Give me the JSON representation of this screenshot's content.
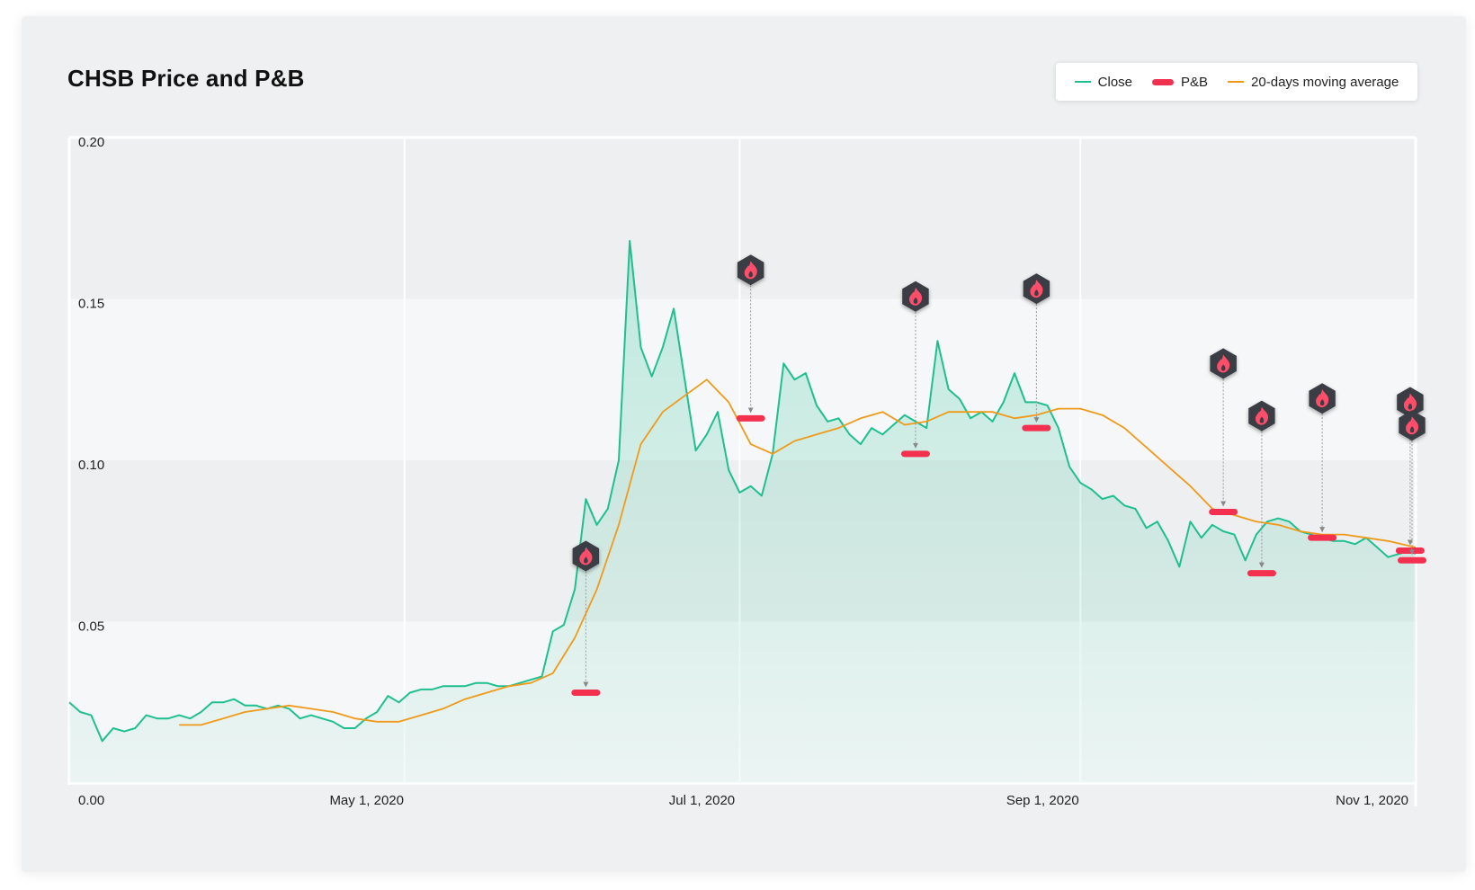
{
  "colors": {
    "close": "#1fbf8f",
    "pb": "#f4304f",
    "ma": "#f09a1c",
    "marker_bg": "#3a3d45"
  },
  "chart_data": {
    "type": "line",
    "title": "CHSB Price and P&B",
    "xlabel": "",
    "ylabel": "",
    "xlim": [
      "2020-03-01",
      "2020-11-01"
    ],
    "ylim": [
      0,
      0.2
    ],
    "y_ticks": [
      "0.20",
      "0.15",
      "0.10",
      "0.05",
      "0.00"
    ],
    "x_ticks": [
      "May 1, 2020",
      "Jul 1, 2020",
      "Sep 1, 2020",
      "Nov 1, 2020"
    ],
    "legend_position": "top-right",
    "grid": true,
    "series": [
      {
        "name": "Close",
        "kind": "line-area",
        "x": [
          "2020-03-01",
          "2020-03-03",
          "2020-03-05",
          "2020-03-07",
          "2020-03-09",
          "2020-03-11",
          "2020-03-13",
          "2020-03-15",
          "2020-03-17",
          "2020-03-19",
          "2020-03-21",
          "2020-03-23",
          "2020-03-25",
          "2020-03-27",
          "2020-03-29",
          "2020-03-31",
          "2020-04-02",
          "2020-04-04",
          "2020-04-06",
          "2020-04-08",
          "2020-04-10",
          "2020-04-12",
          "2020-04-14",
          "2020-04-16",
          "2020-04-18",
          "2020-04-20",
          "2020-04-22",
          "2020-04-24",
          "2020-04-26",
          "2020-04-28",
          "2020-04-30",
          "2020-05-02",
          "2020-05-04",
          "2020-05-06",
          "2020-05-08",
          "2020-05-10",
          "2020-05-12",
          "2020-05-14",
          "2020-05-16",
          "2020-05-18",
          "2020-05-20",
          "2020-05-22",
          "2020-05-24",
          "2020-05-26",
          "2020-05-28",
          "2020-05-30",
          "2020-06-01",
          "2020-06-03",
          "2020-06-05",
          "2020-06-07",
          "2020-06-09",
          "2020-06-11",
          "2020-06-13",
          "2020-06-15",
          "2020-06-17",
          "2020-06-19",
          "2020-06-21",
          "2020-06-23",
          "2020-06-25",
          "2020-06-27",
          "2020-06-29",
          "2020-07-01",
          "2020-07-03",
          "2020-07-05",
          "2020-07-07",
          "2020-07-09",
          "2020-07-11",
          "2020-07-13",
          "2020-07-15",
          "2020-07-17",
          "2020-07-19",
          "2020-07-21",
          "2020-07-23",
          "2020-07-25",
          "2020-07-27",
          "2020-07-29",
          "2020-07-31",
          "2020-08-02",
          "2020-08-04",
          "2020-08-06",
          "2020-08-08",
          "2020-08-10",
          "2020-08-12",
          "2020-08-14",
          "2020-08-16",
          "2020-08-18",
          "2020-08-20",
          "2020-08-22",
          "2020-08-24",
          "2020-08-26",
          "2020-08-28",
          "2020-08-30",
          "2020-09-01",
          "2020-09-03",
          "2020-09-05",
          "2020-09-07",
          "2020-09-09",
          "2020-09-11",
          "2020-09-13",
          "2020-09-15",
          "2020-09-17",
          "2020-09-19",
          "2020-09-21",
          "2020-09-23",
          "2020-09-25",
          "2020-09-27",
          "2020-09-29",
          "2020-10-01",
          "2020-10-03",
          "2020-10-05",
          "2020-10-07",
          "2020-10-09",
          "2020-10-11",
          "2020-10-13",
          "2020-10-15",
          "2020-10-17",
          "2020-10-19",
          "2020-10-21",
          "2020-10-23",
          "2020-10-25",
          "2020-10-27",
          "2020-10-29",
          "2020-10-31",
          "2020-11-01"
        ],
        "values": [
          0.025,
          0.022,
          0.021,
          0.013,
          0.017,
          0.016,
          0.017,
          0.021,
          0.02,
          0.02,
          0.021,
          0.02,
          0.022,
          0.025,
          0.025,
          0.026,
          0.024,
          0.024,
          0.023,
          0.024,
          0.023,
          0.02,
          0.021,
          0.02,
          0.019,
          0.017,
          0.017,
          0.02,
          0.022,
          0.027,
          0.025,
          0.028,
          0.029,
          0.029,
          0.03,
          0.03,
          0.03,
          0.031,
          0.031,
          0.03,
          0.03,
          0.031,
          0.032,
          0.033,
          0.047,
          0.049,
          0.06,
          0.088,
          0.08,
          0.085,
          0.1,
          0.168,
          0.135,
          0.126,
          0.135,
          0.147,
          0.125,
          0.103,
          0.108,
          0.115,
          0.097,
          0.09,
          0.092,
          0.089,
          0.102,
          0.13,
          0.125,
          0.127,
          0.117,
          0.112,
          0.113,
          0.108,
          0.105,
          0.11,
          0.108,
          0.111,
          0.114,
          0.112,
          0.11,
          0.137,
          0.122,
          0.119,
          0.113,
          0.115,
          0.112,
          0.118,
          0.127,
          0.118,
          0.118,
          0.117,
          0.11,
          0.098,
          0.093,
          0.091,
          0.088,
          0.089,
          0.086,
          0.085,
          0.079,
          0.081,
          0.075,
          0.067,
          0.081,
          0.076,
          0.08,
          0.078,
          0.077,
          0.069,
          0.077,
          0.081,
          0.082,
          0.081,
          0.078,
          0.077,
          0.076,
          0.075,
          0.075,
          0.074,
          0.076,
          0.073,
          0.07,
          0.071,
          0.072,
          0.071
        ]
      },
      {
        "name": "20-days moving average",
        "kind": "line",
        "x": [
          "2020-03-21",
          "2020-03-25",
          "2020-03-29",
          "2020-04-02",
          "2020-04-06",
          "2020-04-10",
          "2020-04-14",
          "2020-04-18",
          "2020-04-22",
          "2020-04-26",
          "2020-04-30",
          "2020-05-04",
          "2020-05-08",
          "2020-05-12",
          "2020-05-16",
          "2020-05-20",
          "2020-05-24",
          "2020-05-28",
          "2020-06-01",
          "2020-06-05",
          "2020-06-09",
          "2020-06-13",
          "2020-06-17",
          "2020-06-21",
          "2020-06-25",
          "2020-06-29",
          "2020-07-03",
          "2020-07-07",
          "2020-07-11",
          "2020-07-15",
          "2020-07-19",
          "2020-07-23",
          "2020-07-27",
          "2020-07-31",
          "2020-08-04",
          "2020-08-08",
          "2020-08-12",
          "2020-08-16",
          "2020-08-20",
          "2020-08-24",
          "2020-08-28",
          "2020-09-01",
          "2020-09-05",
          "2020-09-09",
          "2020-09-13",
          "2020-09-17",
          "2020-09-21",
          "2020-09-25",
          "2020-09-29",
          "2020-10-03",
          "2020-10-07",
          "2020-10-11",
          "2020-10-15",
          "2020-10-19",
          "2020-10-23",
          "2020-10-27",
          "2020-11-01"
        ],
        "values": [
          0.018,
          0.018,
          0.02,
          0.022,
          0.023,
          0.024,
          0.023,
          0.022,
          0.02,
          0.019,
          0.019,
          0.021,
          0.023,
          0.026,
          0.028,
          0.03,
          0.031,
          0.034,
          0.045,
          0.06,
          0.08,
          0.105,
          0.115,
          0.12,
          0.125,
          0.118,
          0.105,
          0.102,
          0.106,
          0.108,
          0.11,
          0.113,
          0.115,
          0.111,
          0.112,
          0.115,
          0.115,
          0.115,
          0.113,
          0.114,
          0.116,
          0.116,
          0.114,
          0.11,
          0.104,
          0.098,
          0.092,
          0.085,
          0.083,
          0.081,
          0.08,
          0.078,
          0.077,
          0.077,
          0.076,
          0.075,
          0.073
        ]
      },
      {
        "name": "P&B",
        "kind": "event-marker",
        "x": [
          "2020-06-03",
          "2020-07-03",
          "2020-08-02",
          "2020-08-24",
          "2020-09-27",
          "2020-10-04",
          "2020-10-15",
          "2020-10-31",
          "2020-11-01"
        ],
        "values": [
          0.028,
          0.113,
          0.102,
          0.11,
          0.084,
          0.065,
          0.076,
          0.072,
          0.069
        ]
      }
    ]
  }
}
